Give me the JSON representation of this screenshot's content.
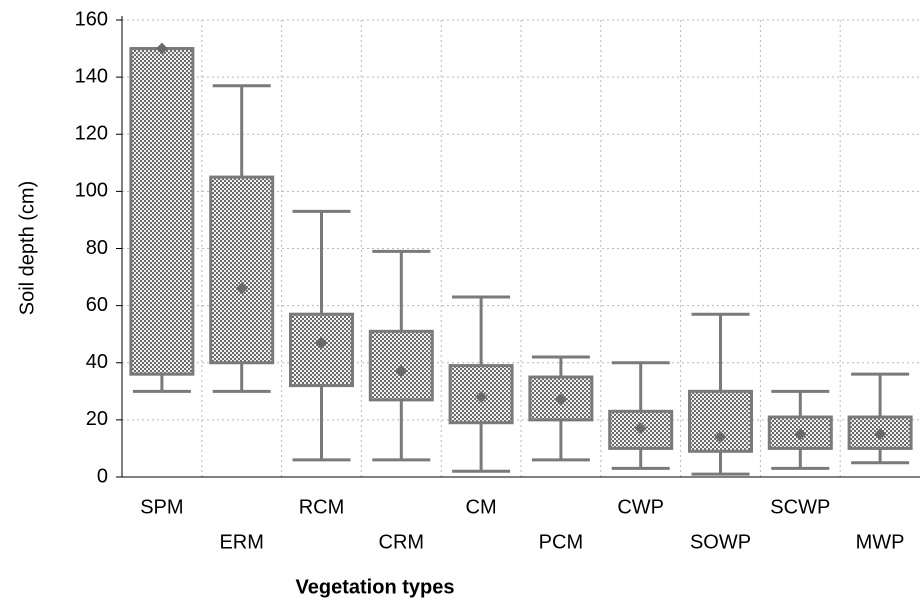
{
  "chart_data": {
    "type": "box",
    "x_label": "Vegetation types",
    "y_label": "Soil depth (cm)",
    "categories": [
      "SPM",
      "ERM",
      "RCM",
      "CRM",
      "CM",
      "PCM",
      "CWP",
      "SOWP",
      "SCWP",
      "MWP"
    ],
    "low": [
      30,
      30,
      6,
      6,
      2,
      6,
      3,
      1,
      3,
      5
    ],
    "q1": [
      36,
      40,
      32,
      27,
      19,
      20,
      10,
      9,
      10,
      10
    ],
    "median": [
      150,
      66,
      47,
      37,
      28,
      27,
      17,
      14,
      15,
      15
    ],
    "q3": [
      150,
      105,
      57,
      51,
      39,
      35,
      23,
      30,
      21,
      21
    ],
    "high": [
      150,
      137,
      93,
      79,
      63,
      42,
      40,
      57,
      30,
      36
    ],
    "color": "#7a7a7a",
    "ylim": [
      0,
      160
    ],
    "yticks": [
      0,
      20,
      40,
      60,
      80,
      100,
      120,
      140,
      160
    ],
    "grid": true
  }
}
